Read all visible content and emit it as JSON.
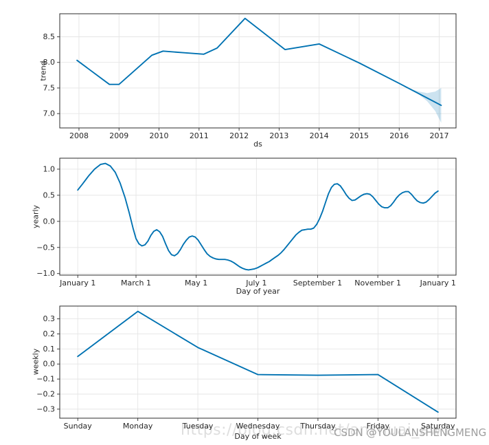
{
  "figure": {
    "kind": "prophet-forecast-components",
    "background": "#ffffff",
    "grid_color": "#e5e5e5",
    "spine_color": "#2b2b2b",
    "tick_color": "#2b2b2b",
    "text_color": "#262626",
    "accent_line_color": "#0072B2",
    "band_color": "rgba(0,114,178,0.2)"
  },
  "watermark": {
    "url_text": "https://blog.csdn.net/anshuai_aw1",
    "credit_text": "CSDN @YOULANSHENGMENG",
    "url_color": "#dedede",
    "credit_color": "#9e9e9e"
  },
  "chart_data": [
    {
      "type": "line",
      "name": "trend",
      "xlabel": "ds",
      "ylabel": "trend",
      "xlim": [
        2007.52,
        2017.42
      ],
      "ylim": [
        6.72,
        8.95
      ],
      "xticks": [
        2008,
        2009,
        2010,
        2011,
        2012,
        2013,
        2014,
        2015,
        2016,
        2017
      ],
      "xtick_labels": [
        "2008",
        "2009",
        "2010",
        "2011",
        "2012",
        "2013",
        "2014",
        "2015",
        "2016",
        "2017"
      ],
      "yticks": [
        7.0,
        7.5,
        8.0,
        8.5
      ],
      "ytick_labels": [
        "7.0",
        "7.5",
        "8.0",
        "8.5"
      ],
      "x": [
        2007.95,
        2008.76,
        2009.0,
        2009.82,
        2010.1,
        2010.6,
        2011.12,
        2011.45,
        2012.15,
        2013.15,
        2014.0,
        2015.0,
        2016.0,
        2017.05
      ],
      "y": [
        8.04,
        7.57,
        7.57,
        8.14,
        8.22,
        8.19,
        8.16,
        8.28,
        8.86,
        8.25,
        8.36,
        7.99,
        7.59,
        7.16
      ],
      "band": {
        "x": [
          2016.28,
          2016.5,
          2016.7,
          2016.9,
          2017.05
        ],
        "upper": [
          7.48,
          7.43,
          7.4,
          7.43,
          7.5
        ],
        "lower": [
          7.48,
          7.37,
          7.24,
          7.05,
          6.82
        ]
      }
    },
    {
      "type": "line",
      "name": "yearly",
      "xlabel": "Day of year",
      "ylabel": "yearly",
      "xlim": [
        -17.25,
        384.25
      ],
      "ylim": [
        -1.03,
        1.21
      ],
      "xticks": [
        1,
        60,
        121,
        182,
        244,
        305,
        366
      ],
      "xtick_labels": [
        "January 1",
        "March 1",
        "May 1",
        "July 1",
        "September 1",
        "November 1",
        "January 1"
      ],
      "yticks": [
        -1.0,
        -0.5,
        0.0,
        0.5,
        1.0
      ],
      "ytick_labels": [
        "−1.0",
        "−0.5",
        "0.0",
        "0.5",
        "1.0"
      ],
      "x": [
        1,
        6,
        12,
        18,
        24,
        29,
        34,
        39,
        44,
        49,
        53,
        57,
        60,
        63,
        66,
        69,
        72,
        75,
        78,
        81,
        84,
        87,
        90,
        93,
        96,
        99,
        102,
        105,
        108,
        111,
        114,
        117,
        120,
        123,
        126,
        129,
        132,
        135,
        138,
        141,
        144,
        147,
        150,
        153,
        156,
        159,
        162,
        165,
        168,
        171,
        174,
        177,
        180,
        183,
        186,
        189,
        192,
        195,
        198,
        201,
        204,
        207,
        210,
        213,
        216,
        219,
        222,
        225,
        228,
        231,
        234,
        237,
        240,
        243,
        246,
        249,
        252,
        255,
        258,
        261,
        264,
        267,
        270,
        273,
        276,
        279,
        282,
        285,
        288,
        291,
        294,
        297,
        300,
        303,
        306,
        309,
        312,
        315,
        318,
        321,
        324,
        327,
        330,
        333,
        336,
        339,
        342,
        345,
        348,
        351,
        354,
        357,
        360,
        363,
        366
      ],
      "y": [
        0.6,
        0.72,
        0.87,
        1.0,
        1.09,
        1.11,
        1.06,
        0.94,
        0.73,
        0.45,
        0.17,
        -0.13,
        -0.33,
        -0.43,
        -0.47,
        -0.45,
        -0.38,
        -0.27,
        -0.19,
        -0.16,
        -0.2,
        -0.29,
        -0.43,
        -0.56,
        -0.64,
        -0.66,
        -0.62,
        -0.54,
        -0.44,
        -0.36,
        -0.3,
        -0.28,
        -0.3,
        -0.36,
        -0.45,
        -0.54,
        -0.62,
        -0.67,
        -0.7,
        -0.72,
        -0.73,
        -0.73,
        -0.73,
        -0.74,
        -0.76,
        -0.79,
        -0.83,
        -0.87,
        -0.9,
        -0.92,
        -0.93,
        -0.92,
        -0.91,
        -0.89,
        -0.86,
        -0.83,
        -0.8,
        -0.77,
        -0.73,
        -0.69,
        -0.65,
        -0.6,
        -0.54,
        -0.47,
        -0.4,
        -0.33,
        -0.26,
        -0.21,
        -0.17,
        -0.16,
        -0.15,
        -0.15,
        -0.13,
        -0.06,
        0.05,
        0.19,
        0.36,
        0.53,
        0.65,
        0.71,
        0.72,
        0.68,
        0.6,
        0.51,
        0.44,
        0.4,
        0.41,
        0.45,
        0.49,
        0.52,
        0.53,
        0.52,
        0.47,
        0.4,
        0.33,
        0.28,
        0.26,
        0.26,
        0.3,
        0.37,
        0.45,
        0.51,
        0.55,
        0.57,
        0.57,
        0.52,
        0.45,
        0.39,
        0.36,
        0.35,
        0.37,
        0.42,
        0.48,
        0.54,
        0.58
      ]
    },
    {
      "type": "line",
      "name": "weekly",
      "xlabel": "Day of week",
      "ylabel": "weekly",
      "xlim": [
        -0.3,
        6.3
      ],
      "ylim": [
        -0.36,
        0.385
      ],
      "xticks": [
        0,
        1,
        2,
        3,
        4,
        5,
        6
      ],
      "xtick_labels": [
        "Sunday",
        "Monday",
        "Tuesday",
        "Wednesday",
        "Thursday",
        "Friday",
        "Saturday"
      ],
      "yticks": [
        -0.3,
        -0.2,
        -0.1,
        0.0,
        0.1,
        0.2,
        0.3
      ],
      "ytick_labels": [
        "−0.3",
        "−0.2",
        "−0.1",
        "0.0",
        "0.1",
        "0.2",
        "0.3"
      ],
      "x": [
        0,
        1,
        2,
        3,
        4,
        5,
        6
      ],
      "y": [
        0.05,
        0.35,
        0.11,
        -0.07,
        -0.075,
        -0.07,
        -0.32
      ]
    }
  ]
}
